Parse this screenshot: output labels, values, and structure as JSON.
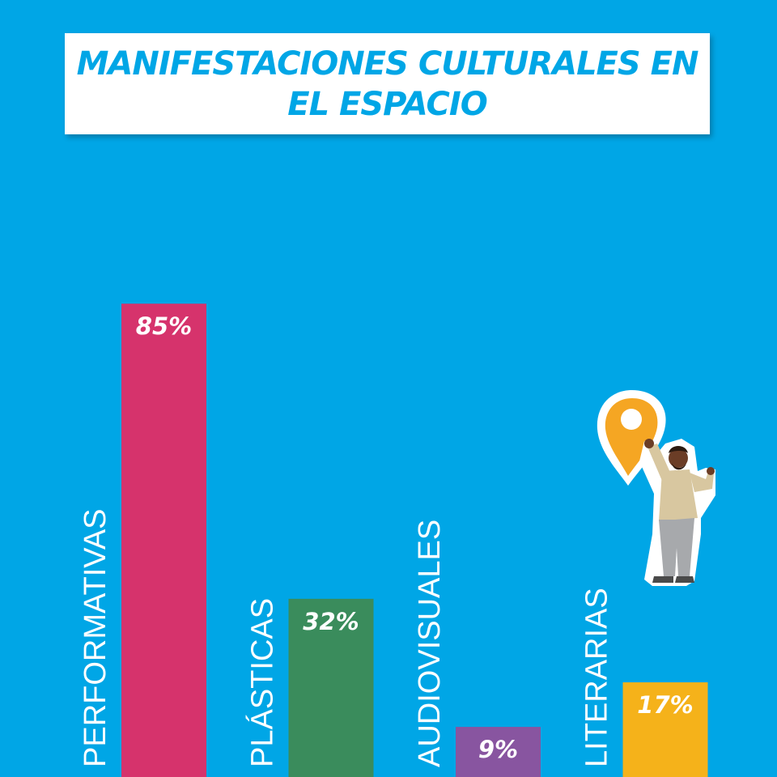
{
  "colors": {
    "background": "#00a6e6",
    "title_text": "#00a6e6",
    "bar_performativas": "#d6336c",
    "bar_plasticas": "#3a8c5c",
    "bar_audiovisuales": "#8855a0",
    "bar_literarias": "#f5b21a"
  },
  "chart_data": {
    "type": "bar",
    "title_lines": [
      "MANIFESTACIONES CULTURALES EN",
      "EL ESPACIO"
    ],
    "categories": [
      "PERFORMATIVAS",
      "PLÁSTICAS",
      "AUDIOVISUALES",
      "LITERARIAS"
    ],
    "values": [
      85,
      32,
      9,
      17
    ],
    "value_labels": [
      "85%",
      "32%",
      "9%",
      "17%"
    ],
    "unit": "%",
    "ylim": [
      0,
      100
    ],
    "grid": false,
    "legend": "none"
  },
  "illustration": {
    "icon": "location-pin-icon",
    "figure": "person-holding-pin"
  }
}
